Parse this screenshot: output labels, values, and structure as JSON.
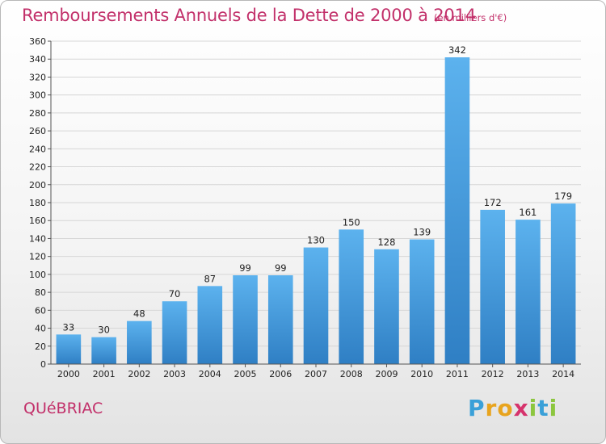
{
  "chart_data": {
    "type": "bar",
    "title": "Remboursements Annuels de la Dette de 2000 à 2014",
    "subtitle": "(en milliers d'€)",
    "categories": [
      "2000",
      "2001",
      "2002",
      "2003",
      "2004",
      "2005",
      "2006",
      "2007",
      "2008",
      "2009",
      "2010",
      "2011",
      "2012",
      "2013",
      "2014"
    ],
    "values": [
      33,
      30,
      48,
      70,
      87,
      99,
      99,
      130,
      150,
      128,
      139,
      342,
      172,
      161,
      179
    ],
    "ylim": [
      0,
      360
    ],
    "yticks": [
      0,
      20,
      40,
      60,
      80,
      100,
      120,
      140,
      160,
      180,
      200,
      220,
      240,
      260,
      280,
      300,
      320,
      340,
      360
    ],
    "grid": true,
    "bar_color": "#4a9fe0",
    "title_color": "#c2306a"
  },
  "commune": "QUéBRIAC",
  "logo": {
    "letters": [
      "P",
      "r",
      "o",
      "x",
      "i",
      "t",
      "i"
    ],
    "colors": [
      "#3aa0d8",
      "#e8a41e",
      "#e8a41e",
      "#d6336c",
      "#8cc63f",
      "#3aa0d8",
      "#8cc63f"
    ]
  }
}
